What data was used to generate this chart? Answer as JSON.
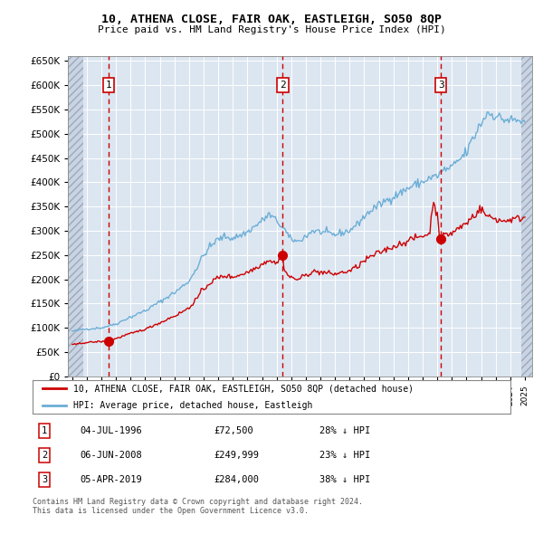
{
  "title1": "10, ATHENA CLOSE, FAIR OAK, EASTLEIGH, SO50 8QP",
  "title2": "Price paid vs. HM Land Registry's House Price Index (HPI)",
  "property_label": "10, ATHENA CLOSE, FAIR OAK, EASTLEIGH, SO50 8QP (detached house)",
  "hpi_label": "HPI: Average price, detached house, Eastleigh",
  "sale_prices": [
    72500,
    249999,
    284000
  ],
  "sale_labels": [
    "1",
    "2",
    "3"
  ],
  "sale_pct": [
    "28% ↓ HPI",
    "23% ↓ HPI",
    "38% ↓ HPI"
  ],
  "sale_date_labels": [
    "04-JUL-1996",
    "06-JUN-2008",
    "05-APR-2019"
  ],
  "sale_price_labels": [
    "£72,500",
    "£249,999",
    "£284,000"
  ],
  "sale_year_floats": [
    1996.5,
    2008.42,
    2019.25
  ],
  "property_color": "#cc0000",
  "hpi_color": "#6baed6",
  "background_color": "#dce6f1",
  "plot_bg": "#ffffff",
  "annotation_color": "#cc0000",
  "ylim": [
    0,
    660000
  ],
  "yticks": [
    0,
    50000,
    100000,
    150000,
    200000,
    250000,
    300000,
    350000,
    400000,
    450000,
    500000,
    550000,
    600000,
    650000
  ],
  "xlim_start": 1993.7,
  "xlim_end": 2025.5,
  "footer": "Contains HM Land Registry data © Crown copyright and database right 2024.\nThis data is licensed under the Open Government Licence v3.0."
}
